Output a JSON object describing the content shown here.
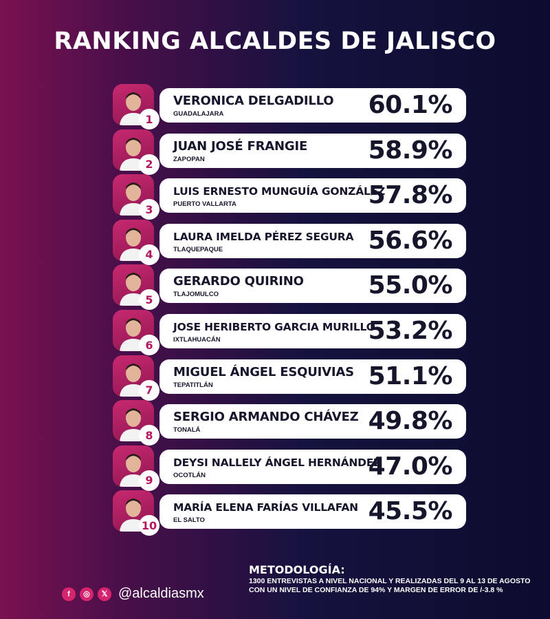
{
  "title": "RANKING ALCALDES DE JALISCO",
  "rankings": [
    {
      "rank": "1",
      "name": "VERONICA DELGADILLO",
      "city": "GUADALAJARA",
      "percent": "60.1%"
    },
    {
      "rank": "2",
      "name": "JUAN JOSÉ FRANGIE",
      "city": "ZAPOPAN",
      "percent": "58.9%"
    },
    {
      "rank": "3",
      "name": "LUIS ERNESTO MUNGUÍA GONZÁLEZ",
      "city": "PUERTO VALLARTA",
      "percent": "57.8%"
    },
    {
      "rank": "4",
      "name": "LAURA IMELDA PÉREZ SEGURA",
      "city": "TLAQUEPAQUE",
      "percent": "56.6%"
    },
    {
      "rank": "5",
      "name": "GERARDO QUIRINO",
      "city": "TLAJOMULCO",
      "percent": "55.0%"
    },
    {
      "rank": "6",
      "name": "JOSE HERIBERTO GARCIA MURILLO",
      "city": "IXTLAHUACÁN",
      "percent": "53.2%"
    },
    {
      "rank": "7",
      "name": "MIGUEL ÁNGEL ESQUIVIAS",
      "city": "TEPATITLÁN",
      "percent": "51.1%"
    },
    {
      "rank": "8",
      "name": "SERGIO ARMANDO CHÁVEZ",
      "city": "TONALÁ",
      "percent": "49.8%"
    },
    {
      "rank": "9",
      "name": "DEYSI NALLELY ÁNGEL HERNÁNDEZ",
      "city": "OCOTLÁN",
      "percent": "47.0%"
    },
    {
      "rank": "10",
      "name": "MARÍA ELENA FARÍAS VILLAFAN",
      "city": "EL SALTO",
      "percent": "45.5%"
    }
  ],
  "methodology": {
    "title": "METODOLOGÍA:",
    "text": "1300 ENTREVISTAS A NIVEL NACIONAL Y REALIZADAS DEL 9 AL 13 DE AGOSTO CON UN NIVEL DE CONFIANZA DE 94% Y MARGEN DE ERROR DE /-3.8 %"
  },
  "social": {
    "icons": [
      {
        "name": "facebook-icon",
        "glyph": "f"
      },
      {
        "name": "instagram-icon",
        "glyph": "◎"
      },
      {
        "name": "x-icon",
        "glyph": "𝕏"
      }
    ],
    "handle": "@alcaldiasmx"
  },
  "colors": {
    "accent": "#c8296f",
    "card": "#ffffff",
    "text_dark": "#15162b"
  }
}
